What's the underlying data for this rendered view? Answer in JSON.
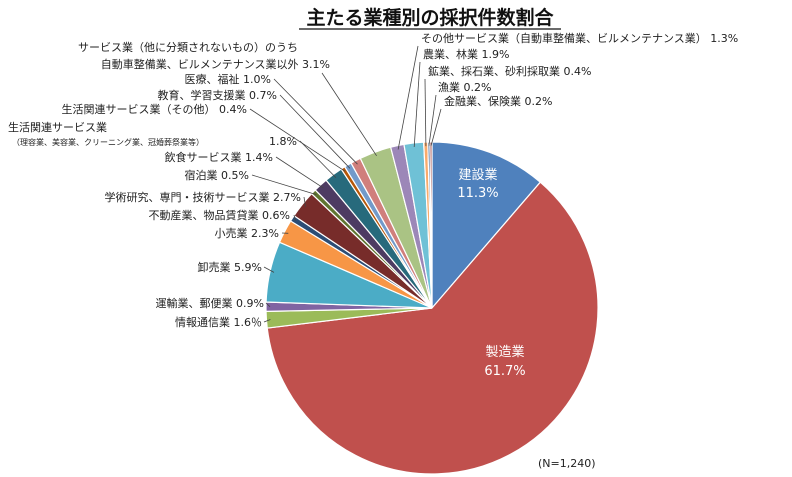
{
  "chart_data": {
    "type": "pie",
    "title": "主たる業種別の採択件数割合",
    "note": "(N=1,240)",
    "series": [
      {
        "values": [
          11.3,
          61.7,
          1.6,
          0.9,
          5.9,
          2.3,
          0.6,
          2.7,
          0.5,
          1.4,
          1.8,
          0.4,
          0.7,
          1.0,
          3.1,
          1.3,
          1.9,
          0.4,
          0.2,
          0.2
        ]
      }
    ],
    "slices": [
      {
        "name": "建設業",
        "value": 11.3,
        "label": "11.3%",
        "color": "#4f81bd"
      },
      {
        "name": "製造業",
        "value": 61.7,
        "label": "61.7%",
        "color": "#c0504d"
      },
      {
        "name": "情報通信業",
        "value": 1.6,
        "label": "情報通信業 1.6％",
        "color": "#9bbb59"
      },
      {
        "name": "運輸業、郵便業",
        "value": 0.9,
        "label": "運輸業、郵便業 0.9%",
        "color": "#8064a2"
      },
      {
        "name": "卸売業",
        "value": 5.9,
        "label": "卸売業 5.9%",
        "color": "#4bacc6"
      },
      {
        "name": "小売業",
        "value": 2.3,
        "label": "小売業 2.3%",
        "color": "#f79646"
      },
      {
        "name": "不動産業、物品賃貸業",
        "value": 0.6,
        "label": "不動産業、物品賃貸業 0.6%",
        "color": "#2c4d75"
      },
      {
        "name": "学術研究、専門・技術サービス業",
        "value": 2.7,
        "label": "学術研究、専門・技術サービス業 2.7%",
        "color": "#772c2a"
      },
      {
        "name": "宿泊業",
        "value": 0.5,
        "label": "宿泊業 0.5%",
        "color": "#5f7530"
      },
      {
        "name": "飲食サービス業",
        "value": 1.4,
        "label": "飲食サービス業 1.4%",
        "color": "#4d3b62"
      },
      {
        "name": "生活関連サービス業（理容業、美容業、クリーニング業、冠婚葬祭業等）",
        "value": 1.8,
        "label": "1.8%",
        "color": "#276a7c"
      },
      {
        "name": "生活関連サービス業（その他）",
        "value": 0.4,
        "label": "生活関連サービス業（その他） 0.4%",
        "color": "#b65708"
      },
      {
        "name": "教育、学習支援業",
        "value": 0.7,
        "label": "教育、学習支援業 0.7%",
        "color": "#729aca"
      },
      {
        "name": "医療、福祉",
        "value": 1.0,
        "label": "医療、福祉 1.0%",
        "color": "#d07f7c"
      },
      {
        "name": "サービス業（他に分類されないもの）のうち自動車整備業、ビルメンテナンス業以外",
        "value": 3.1,
        "label": "自動車整備業、ビルメンテナンス業以外 3.1%",
        "color": "#aac384"
      },
      {
        "name": "その他サービス業（自動車整備業、ビルメンテナンス業）",
        "value": 1.3,
        "label": "その他サービス業（自動車整備業、ビルメンテナンス業） 1.3%",
        "color": "#9c87b8"
      },
      {
        "name": "農業、林業",
        "value": 1.9,
        "label": "農業、林業 1.9%",
        "color": "#6fc1d6"
      },
      {
        "name": "鉱業、採石業、砂利採取業",
        "value": 0.4,
        "label": "鉱業、採石業、砂利採取業 0.4%",
        "color": "#f9ab6b"
      },
      {
        "name": "漁業",
        "value": 0.2,
        "label": "漁業 0.2%",
        "color": "#3a5f8f"
      },
      {
        "name": "金融業、保険業",
        "value": 0.2,
        "label": "金融業、保険業 0.2%",
        "color": "#943634"
      }
    ],
    "extra_label_lines": {
      "services_line1": "サービス業（他に分類されないもの）のうち",
      "lifestyle_line1": "生活関連サービス業",
      "lifestyle_line2": "（理容業、美容業、クリーニング業、冠婚葬祭業等）"
    },
    "legend": "none"
  }
}
